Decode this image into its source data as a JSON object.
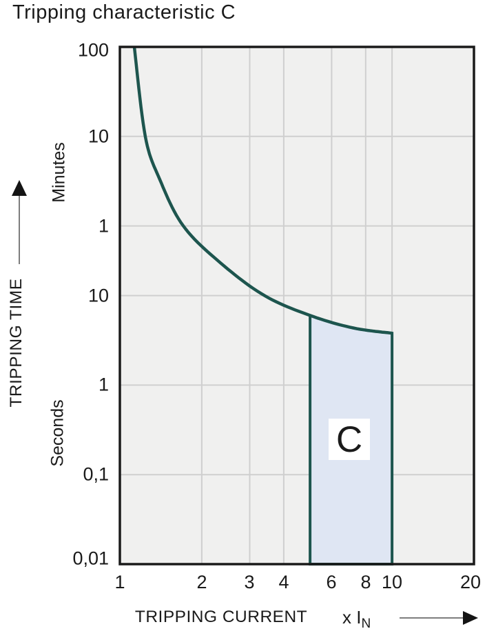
{
  "title": "Tripping characteristic C",
  "region_label": "C",
  "y_axis": {
    "title": "TRIPPING TIME",
    "unit_minutes": "Minutes",
    "unit_seconds": "Seconds",
    "ticks": [
      {
        "label": "100",
        "seconds": 6000
      },
      {
        "label": "10",
        "seconds": 600
      },
      {
        "label": "1",
        "seconds": 60
      },
      {
        "label": "10",
        "seconds": 10
      },
      {
        "label": "1",
        "seconds": 1
      },
      {
        "label": "0,1",
        "seconds": 0.1
      },
      {
        "label": "0,01",
        "seconds": 0.01
      }
    ]
  },
  "x_axis": {
    "title": "TRIPPING CURRENT",
    "multiplier_label": "x I",
    "multiplier_sub": "N",
    "ticks": [
      {
        "label": "1",
        "value": 1
      },
      {
        "label": "2",
        "value": 2
      },
      {
        "label": "3",
        "value": 3
      },
      {
        "label": "4",
        "value": 4
      },
      {
        "label": "6",
        "value": 6
      },
      {
        "label": "8",
        "value": 8
      },
      {
        "label": "10",
        "value": 10
      },
      {
        "label": "20",
        "value": 20
      }
    ]
  },
  "icons": {
    "y_axis_arrow": "up-arrow",
    "x_axis_arrow": "right-arrow"
  },
  "colors": {
    "curve": "#1d554e",
    "region_fill": "#dfe6f3",
    "region_border": "#1d554e",
    "plot_background": "#f0f0ef",
    "gridline": "#cfcfcf",
    "plot_border": "#1a1a1a",
    "text": "#1a1a1a",
    "label_box": "#ffffff"
  },
  "chart_data": {
    "type": "line",
    "title": "Tripping characteristic C",
    "xlabel": "TRIPPING CURRENT x IN",
    "ylabel": "TRIPPING TIME",
    "x_scale": "log",
    "y_scale": "log",
    "x_range": [
      1,
      20
    ],
    "y_range_seconds": [
      0.01,
      6000
    ],
    "x_ticks": [
      1,
      2,
      3,
      4,
      6,
      8,
      10,
      20
    ],
    "y_ticks_seconds": [
      6000,
      600,
      60,
      10,
      1,
      0.1,
      0.01
    ],
    "y_tick_display": [
      "100 min",
      "10 min",
      "1 min",
      "10 s",
      "1 s",
      "0,1 s",
      "0,01 s"
    ],
    "grid": "on",
    "legend": "none",
    "curve_points_x_seconds": [
      [
        1.13,
        6000
      ],
      [
        1.24,
        600
      ],
      [
        1.4,
        200
      ],
      [
        1.71,
        60
      ],
      [
        2.35,
        23
      ],
      [
        3.4,
        10
      ],
      [
        5.0,
        6
      ],
      [
        7.2,
        4.35
      ],
      [
        10.0,
        3.8
      ]
    ],
    "trip_region": {
      "label": "C",
      "x_min": 5,
      "x_max": 10,
      "y_min_seconds": 0.01,
      "top_boundary": "curve",
      "time_at_x5_seconds": 6,
      "time_at_x10_seconds": 3.8
    }
  }
}
